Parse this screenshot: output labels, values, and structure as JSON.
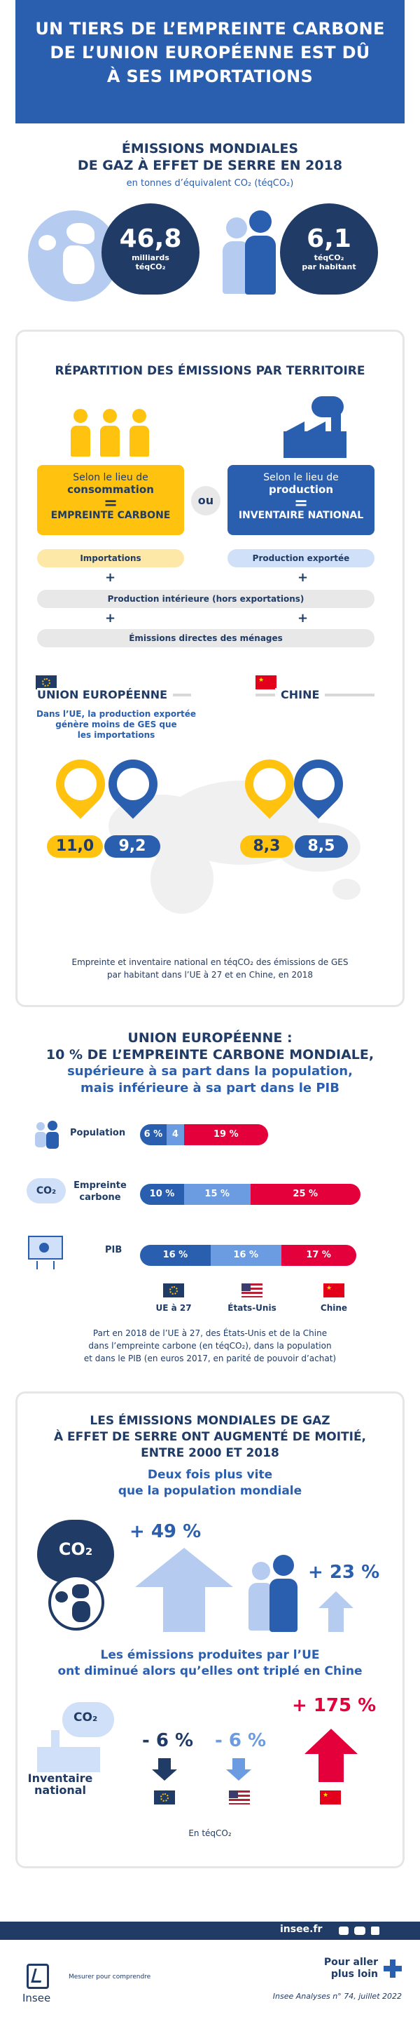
{
  "header": {
    "line1": "UN TIERS DE L’EMPREINTE CARBONE",
    "line2": "DE L’UNION EUROPÉENNE EST DÛ",
    "line3": "À SES IMPORTATIONS"
  },
  "world": {
    "title1": "ÉMISSIONS MONDIALES",
    "title2": "DE GAZ À EFFET DE SERRE EN 2018",
    "subtitle": "en tonnes d’équivalent CO₂ (téqCO₂)",
    "total_value": "46,8",
    "total_unit1": "milliards",
    "total_unit2": "téqCO₂",
    "per_cap_value": "6,1",
    "per_cap_unit1": "téqCO₂",
    "per_cap_unit2": "par habitant"
  },
  "territory": {
    "title": "RÉPARTITION DES ÉMISSIONS  PAR TERRITOIRE",
    "left_box_line1": "Selon le lieu de",
    "left_box_line2": "consommation",
    "left_box_eq": "=",
    "left_box_line3": "EMPREINTE CARBONE",
    "or": "ou",
    "right_box_line1": "Selon le lieu de",
    "right_box_line2": "production",
    "right_box_eq": "=",
    "right_box_line3": "INVENTAIRE NATIONAL",
    "importations": "Importations",
    "production_exportee": "Production exportée",
    "plus": "+",
    "production_interieure": "Production intérieure (hors exportations)",
    "emissions_menages": "Émissions directes des ménages",
    "eu_label": "UNION EUROPÉENNE",
    "cn_label": "CHINE",
    "eu_note1": "Dans l’UE, la production exportée",
    "eu_note2": "génère moins de GES que",
    "eu_note3": "les importations",
    "eu_footprint": "11,0",
    "eu_inventory": "9,2",
    "cn_footprint": "8,3",
    "cn_inventory": "8,5",
    "footnote1": "Empreinte et inventaire national en téqCO₂ des émissions de GES",
    "footnote2": "par habitant dans l’UE à 27 et en Chine, en 2018"
  },
  "eu_share": {
    "title1": "UNION EUROPÉENNE :",
    "title2": "10 % DE L’EMPREINTE CARBONE MONDIALE,",
    "title3": "supérieure à sa part dans la population,",
    "title4": "mais inférieure à sa part dans le PIB",
    "row_population": "Population",
    "row_empreinte1": "Empreinte",
    "row_empreinte2": "carbone",
    "row_pib": "PIB",
    "co2_badge": "CO₂",
    "legend_eu": "UE à 27",
    "legend_us": "États-Unis",
    "legend_cn": "Chine",
    "note1": "Part en 2018 de l’UE à 27, des États-Unis et de la Chine",
    "note2": "dans l’empreinte carbone (en téqCO₂), dans la population",
    "note3": "et dans le PIB (en euros 2017, en parité de pouvoir d’achat)",
    "colors": {
      "eu": "#2a5fb0",
      "us": "#6b9be0",
      "cn": "#e3003b"
    }
  },
  "chart_data": {
    "type": "bar",
    "categories": [
      "Population",
      "Empreinte carbone",
      "PIB"
    ],
    "series": [
      {
        "name": "UE à 27",
        "values": [
          6,
          10,
          16
        ]
      },
      {
        "name": "États-Unis",
        "values": [
          4,
          15,
          16
        ]
      },
      {
        "name": "Chine",
        "values": [
          19,
          25,
          17
        ]
      }
    ]
  },
  "growth": {
    "title1": "LES ÉMISSIONS MONDIALES DE GAZ",
    "title2": "À EFFET DE SERRE ONT AUGMENTÉ DE MOITIÉ,",
    "title3": "ENTRE 2000 ET 2018",
    "sub1": "Deux fois plus vite",
    "sub2": "que la population mondiale",
    "co2_badge": "CO₂",
    "emissions_growth": "+ 49 %",
    "population_growth": "+ 23 %",
    "sub3": "Les émissions produites par l’UE",
    "sub4": "ont diminué alors qu’elles ont triplé en Chine",
    "inventory1": "Inventaire",
    "inventory2": "national",
    "eu_change": "- 6 %",
    "us_change": "- 6 %",
    "cn_change": "+ 175 %",
    "unit": "En téqCO₂"
  },
  "footer": {
    "site": "insee.fr",
    "aller1": "Pour aller",
    "aller2": "plus loin",
    "logo_name": "Insee",
    "tagline": "Mesurer pour comprendre",
    "reference": "Insee Analyses n° 74, juillet 2022"
  }
}
